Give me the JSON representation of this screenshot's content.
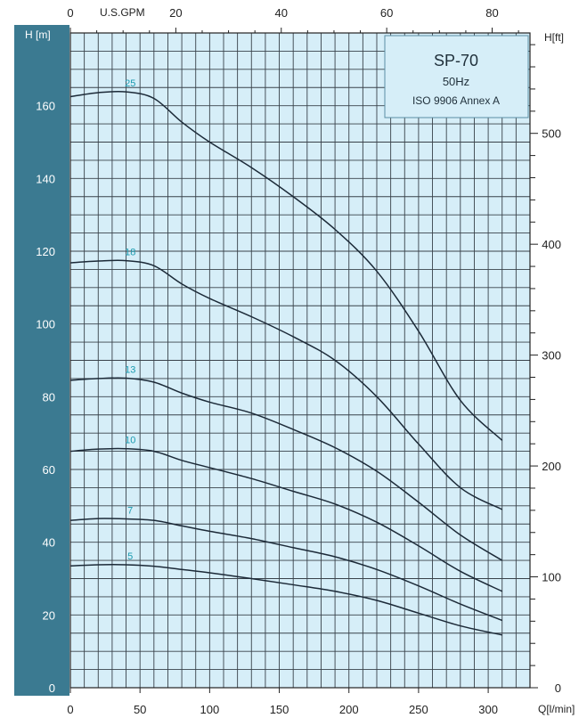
{
  "chart_data": {
    "type": "line",
    "info_box": {
      "title": "SP-70",
      "frequency": "50Hz",
      "standard": "ISO 9906 Annex A"
    },
    "x_axis": {
      "title": "Q[l/min]",
      "range": [
        0,
        330
      ],
      "ticks": [
        "0",
        "50",
        "100",
        "150",
        "200",
        "250",
        "300"
      ]
    },
    "x_top_axis": {
      "title": "U.S.GPM",
      "ticks": [
        "0",
        "20",
        "40",
        "60",
        "80"
      ]
    },
    "y_axis": {
      "title": "H  [m]",
      "range": [
        0,
        180
      ],
      "ticks": [
        "0",
        "20",
        "40",
        "60",
        "80",
        "100",
        "120",
        "140",
        "160"
      ]
    },
    "y_right_axis": {
      "title": "H[ft]",
      "ticks": [
        "0",
        "100",
        "200",
        "300",
        "400",
        "500"
      ]
    },
    "grid": true,
    "series": [
      {
        "name": "25",
        "x": [
          0,
          20,
          40,
          60,
          80,
          100,
          130,
          160,
          190,
          220,
          250,
          280,
          310
        ],
        "y": [
          162.5,
          163.6,
          163.8,
          162,
          155.5,
          150,
          143,
          135,
          126,
          114.5,
          98,
          79,
          68
        ]
      },
      {
        "name": "18",
        "x": [
          0,
          20,
          40,
          60,
          80,
          100,
          130,
          160,
          190,
          220,
          250,
          280,
          310
        ],
        "y": [
          116.8,
          117.3,
          117.4,
          116,
          111,
          107,
          102,
          96.5,
          90,
          80,
          67,
          55,
          49
        ]
      },
      {
        "name": "13",
        "x": [
          0,
          20,
          40,
          60,
          80,
          100,
          130,
          160,
          190,
          220,
          250,
          280,
          310
        ],
        "y": [
          84.5,
          85,
          85.1,
          84,
          81,
          78.5,
          75.5,
          71,
          66,
          59.5,
          51,
          42,
          35
        ]
      },
      {
        "name": "10",
        "x": [
          0,
          20,
          40,
          60,
          80,
          100,
          130,
          160,
          190,
          220,
          250,
          280,
          310
        ],
        "y": [
          65,
          65.6,
          65.7,
          65,
          62.5,
          60.5,
          57.5,
          54,
          50.5,
          45.5,
          39,
          32,
          26.5
        ]
      },
      {
        "name": "7",
        "x": [
          0,
          20,
          40,
          60,
          80,
          100,
          130,
          160,
          190,
          220,
          250,
          280,
          310
        ],
        "y": [
          46,
          46.5,
          46.4,
          46,
          44.5,
          43,
          41,
          38.5,
          36,
          32.5,
          28,
          23,
          18.5
        ]
      },
      {
        "name": "5",
        "x": [
          0,
          20,
          40,
          60,
          80,
          100,
          130,
          160,
          190,
          220,
          250,
          280,
          310
        ],
        "y": [
          33.5,
          33.8,
          33.8,
          33.4,
          32.5,
          31.6,
          30,
          28.3,
          26.5,
          24,
          20.5,
          17,
          14.5
        ]
      }
    ]
  }
}
